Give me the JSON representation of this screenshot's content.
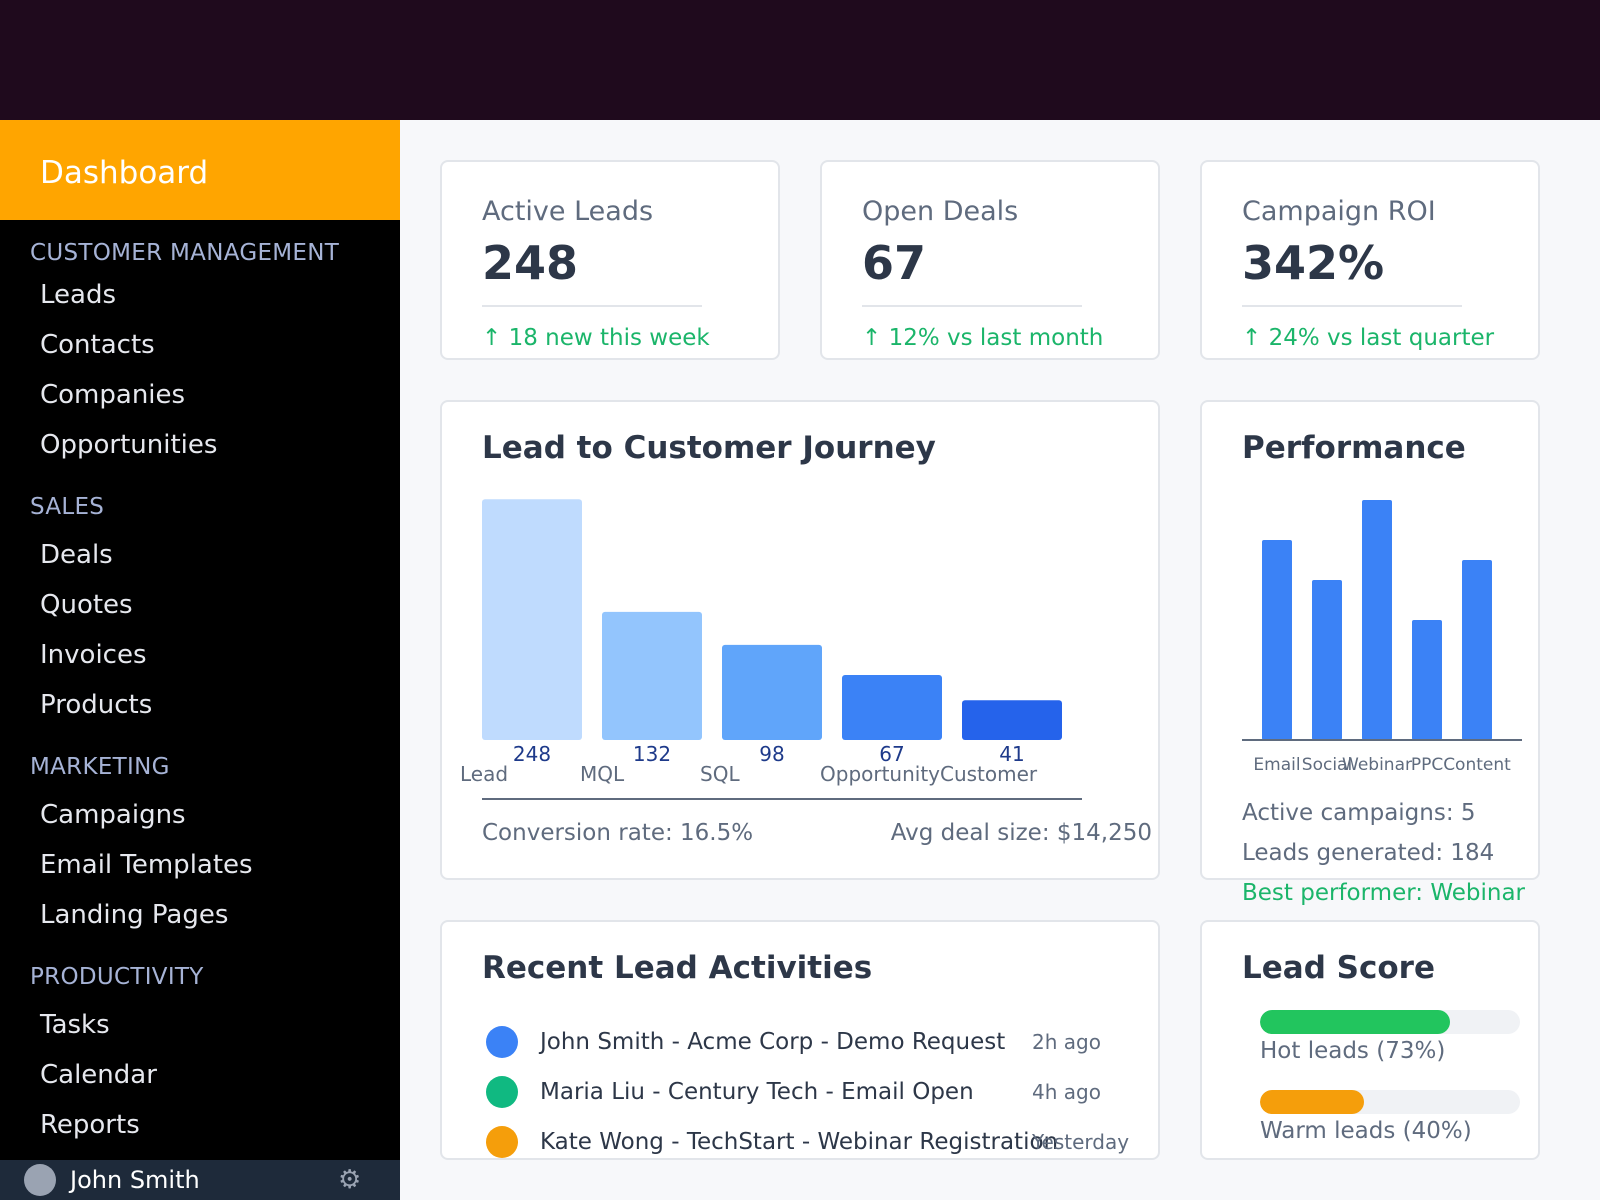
{
  "sidebar": {
    "brand": "Dashboard",
    "sections": [
      {
        "title": "CUSTOMER MANAGEMENT",
        "items": [
          "Leads",
          "Contacts",
          "Companies",
          "Opportunities"
        ]
      },
      {
        "title": "SALES",
        "items": [
          "Deals",
          "Quotes",
          "Invoices",
          "Products"
        ]
      },
      {
        "title": "MARKETING",
        "items": [
          "Campaigns",
          "Email Templates",
          "Landing Pages"
        ]
      },
      {
        "title": "PRODUCTIVITY",
        "items": [
          "Tasks",
          "Calendar",
          "Reports"
        ]
      }
    ],
    "user": {
      "name": "John Smith",
      "settings_icon": "gear-icon"
    }
  },
  "stats": [
    {
      "label": "Active Leads",
      "value": "248",
      "trend": "↑ 18 new this week"
    },
    {
      "label": "Open Deals",
      "value": "67",
      "trend": "↑ 12% vs last month"
    },
    {
      "label": "Campaign ROI",
      "value": "342%",
      "trend": "↑ 24% vs last quarter"
    }
  ],
  "journey": {
    "title": "Lead to Customer Journey",
    "conversion": "Conversion rate: 16.5%",
    "avg_deal": "Avg deal size: $14,250"
  },
  "performance": {
    "title": "Performance",
    "active_campaigns": "Active campaigns: 5",
    "leads_generated": "Leads generated: 184",
    "best_performer": "Best performer: Webinar"
  },
  "activities": {
    "title": "Recent Lead Activities",
    "items": [
      {
        "text": "John Smith - Acme Corp - Demo Request",
        "time": "2h ago",
        "color": "#3b82f6"
      },
      {
        "text": "Maria Liu - Century Tech - Email Open",
        "time": "4h ago",
        "color": "#10b981"
      },
      {
        "text": "Kate Wong - TechStart - Webinar Registration",
        "time": "Yesterday",
        "color": "#f59e0b"
      }
    ]
  },
  "lead_score": {
    "title": "Lead Score",
    "items": [
      {
        "label": "Hot leads (73%)",
        "percent": 73,
        "color": "#22c55e"
      },
      {
        "label": "Warm leads (40%)",
        "percent": 40,
        "color": "#f59e0b"
      }
    ]
  },
  "chart_data": [
    {
      "type": "bar",
      "categories": [
        "Lead",
        "MQL",
        "SQL",
        "Opportunity",
        "Customer"
      ],
      "values": [
        248,
        132,
        98,
        67,
        41
      ],
      "colors": [
        "#bfdbfe",
        "#93c5fd",
        "#60a5fa",
        "#3b82f6",
        "#2563eb"
      ],
      "title": "Lead to Customer Journey",
      "xlabel": "",
      "ylabel": ""
    },
    {
      "type": "bar",
      "categories": [
        "Email",
        "Social",
        "Webinar",
        "PPC",
        "Content"
      ],
      "values": [
        100,
        80,
        120,
        60,
        90
      ],
      "color": "#3b82f6",
      "title": "Performance",
      "xlabel": "",
      "ylabel": "",
      "ylim": [
        0,
        120
      ]
    }
  ]
}
